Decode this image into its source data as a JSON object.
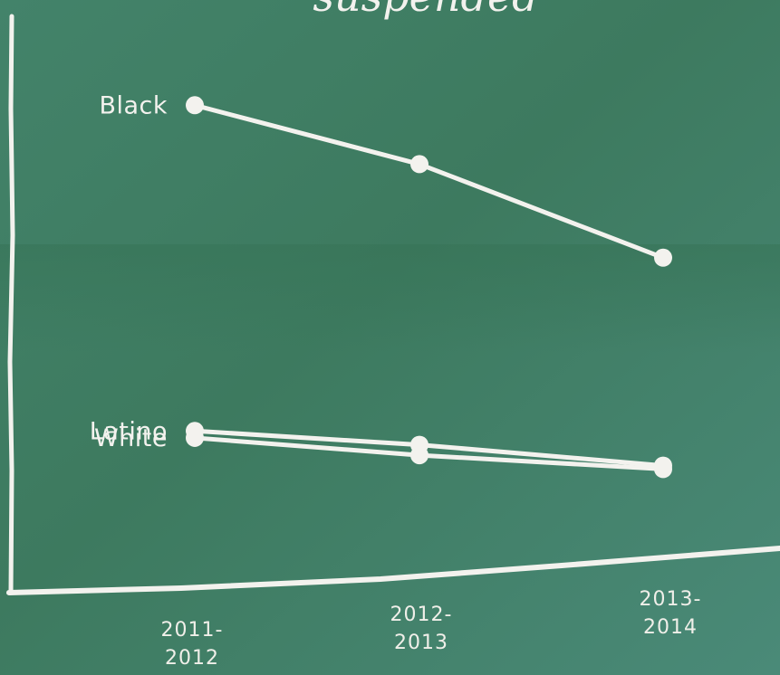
{
  "chart_data": {
    "type": "line",
    "title": "suspended",
    "categories": [
      [
        "2011-",
        "2012"
      ],
      [
        "2012-",
        "2013"
      ],
      [
        "2013-",
        "2014"
      ]
    ],
    "series": [
      {
        "name": "Black",
        "values": [
          100,
          83,
          56
        ]
      },
      {
        "name": "Latino",
        "values": [
          6,
          2,
          -4
        ]
      },
      {
        "name": "White",
        "values": [
          4,
          -1,
          -5
        ]
      }
    ],
    "ylim": [
      -25,
      110
    ],
    "grid": false,
    "legend": "inline labels at left of each line",
    "colors": {
      "board": "#3f7d62",
      "chalk": "#f3f2ee"
    }
  }
}
